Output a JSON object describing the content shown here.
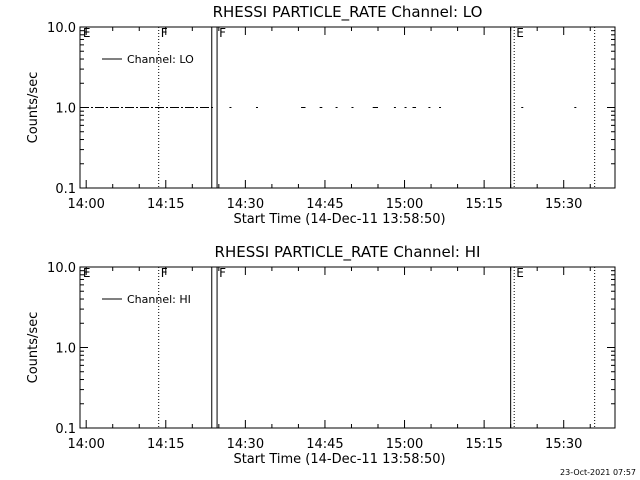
{
  "chart_data": [
    {
      "type": "line",
      "title": "RHESSI PARTICLE_RATE Channel: LO",
      "xlabel": "Start Time (14-Dec-11 13:58:50)",
      "ylabel": "Counts/sec",
      "yscale": "log",
      "ylim": [
        0.1,
        10.0
      ],
      "xlim": [
        "13:58:50",
        "15:39:40"
      ],
      "x_ticks": [
        "14:00",
        "14:15",
        "14:30",
        "14:45",
        "15:00",
        "15:15",
        "15:30"
      ],
      "y_ticks": [
        "0.1",
        "1.0",
        "10.0"
      ],
      "legend": {
        "placement": "top-left",
        "entries": [
          "Channel: LO"
        ]
      },
      "grid": false,
      "series": [
        {
          "name": "Channel: LO",
          "note": "intermittent dashed trace at ~1.0 counts/sec",
          "segments": [
            {
              "x": [
                "13:58:50",
                "14:24:00"
              ],
              "y": 1.0
            },
            {
              "x": [
                "14:27:00",
                "14:27:20"
              ],
              "y": 1.0
            },
            {
              "x": [
                "14:32:00",
                "14:32:20"
              ],
              "y": 1.0
            },
            {
              "x": [
                "14:40:30",
                "14:41:20"
              ],
              "y": 1.0
            },
            {
              "x": [
                "14:44:00",
                "14:44:30"
              ],
              "y": 1.0
            },
            {
              "x": [
                "14:47:00",
                "14:47:20"
              ],
              "y": 1.0
            },
            {
              "x": [
                "14:50:00",
                "14:50:20"
              ],
              "y": 1.0
            },
            {
              "x": [
                "14:54:00",
                "14:55:00"
              ],
              "y": 1.0
            },
            {
              "x": [
                "14:58:00",
                "14:58:20"
              ],
              "y": 1.0
            },
            {
              "x": [
                "15:00:00",
                "15:00:20"
              ],
              "y": 1.0
            },
            {
              "x": [
                "15:01:30",
                "15:02:10"
              ],
              "y": 1.0
            },
            {
              "x": [
                "15:04:30",
                "15:04:50"
              ],
              "y": 1.0
            },
            {
              "x": [
                "15:06:30",
                "15:06:50"
              ],
              "y": 1.0
            },
            {
              "x": [
                "15:22:00",
                "15:22:10"
              ],
              "y": 1.0
            },
            {
              "x": [
                "15:32:00",
                "15:32:20"
              ],
              "y": 1.0
            }
          ]
        }
      ],
      "markers": [
        {
          "x": "13:59:00",
          "label": "E",
          "style": "none"
        },
        {
          "x": "14:13:40",
          "label": "F",
          "style": "dotted"
        },
        {
          "x": "14:23:40",
          "label": "",
          "style": "solid"
        },
        {
          "x": "14:24:40",
          "label": "F",
          "style": "solid"
        },
        {
          "x": "15:20:00",
          "label": "",
          "style": "solid"
        },
        {
          "x": "15:20:40",
          "label": "E",
          "style": "dotted"
        },
        {
          "x": "15:35:50",
          "label": "",
          "style": "dotted"
        }
      ]
    },
    {
      "type": "line",
      "title": "RHESSI PARTICLE_RATE Channel: HI",
      "xlabel": "Start Time (14-Dec-11 13:58:50)",
      "ylabel": "Counts/sec",
      "yscale": "log",
      "ylim": [
        0.1,
        10.0
      ],
      "xlim": [
        "13:58:50",
        "15:39:40"
      ],
      "x_ticks": [
        "14:00",
        "14:15",
        "14:30",
        "14:45",
        "15:00",
        "15:15",
        "15:30"
      ],
      "y_ticks": [
        "0.1",
        "1.0",
        "10.0"
      ],
      "legend": {
        "placement": "top-left",
        "entries": [
          "Channel: HI"
        ]
      },
      "grid": false,
      "series": [
        {
          "name": "Channel: HI",
          "note": "no data drawn in plot range",
          "segments": []
        }
      ],
      "markers": [
        {
          "x": "13:59:00",
          "label": "E",
          "style": "none"
        },
        {
          "x": "14:13:40",
          "label": "F",
          "style": "dotted"
        },
        {
          "x": "14:23:40",
          "label": "",
          "style": "solid"
        },
        {
          "x": "14:24:40",
          "label": "F",
          "style": "solid"
        },
        {
          "x": "15:20:00",
          "label": "",
          "style": "solid"
        },
        {
          "x": "15:20:40",
          "label": "E",
          "style": "dotted"
        },
        {
          "x": "15:35:50",
          "label": "",
          "style": "dotted"
        }
      ]
    }
  ],
  "footer": {
    "timestamp": "23-Oct-2021 07:57"
  },
  "colors": {
    "background": "#ffffff",
    "foreground": "#000000"
  }
}
